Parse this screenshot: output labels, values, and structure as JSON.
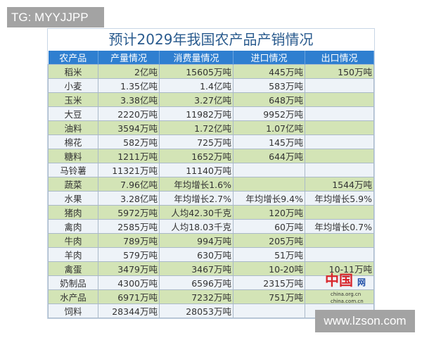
{
  "watermark_top": "TG: MYYJJPP",
  "watermark_bottom": "www.lzson.com",
  "logo": {
    "text": "中国",
    "suffix": "网",
    "url1": "china.org.cn",
    "url2": "china.com.cn"
  },
  "title": "预计2029年我国农产品产销情况",
  "colors": {
    "header": "#2f7fd0",
    "row_green": "#d3e4b6",
    "row_light": "#eef3f8",
    "title": "#2a5b8e"
  },
  "headers": [
    "农产品",
    "产量情况",
    "消费量情况",
    "进口情况",
    "出口情况"
  ],
  "rows": [
    [
      "稻米",
      "2亿吨",
      "15605万吨",
      "445万吨",
      "150万吨"
    ],
    [
      "小麦",
      "1.35亿吨",
      "1.4亿吨",
      "583万吨",
      ""
    ],
    [
      "玉米",
      "3.38亿吨",
      "3.27亿吨",
      "648万吨",
      ""
    ],
    [
      "大豆",
      "2220万吨",
      "11982万吨",
      "9952万吨",
      ""
    ],
    [
      "油料",
      "3594万吨",
      "1.72亿吨",
      "1.07亿吨",
      ""
    ],
    [
      "棉花",
      "582万吨",
      "725万吨",
      "145万吨",
      ""
    ],
    [
      "糖料",
      "1211万吨",
      "1652万吨",
      "644万吨",
      ""
    ],
    [
      "马铃薯",
      "11321万吨",
      "11140万吨",
      "",
      ""
    ],
    [
      "蔬菜",
      "7.96亿吨",
      "年均增长1.6%",
      "",
      "1544万吨"
    ],
    [
      "水果",
      "3.28亿吨",
      "年均增长2.7%",
      "年均增长9.4%",
      "年均增长5.9%"
    ],
    [
      "猪肉",
      "5972万吨",
      "人均42.30千克",
      "120万吨",
      ""
    ],
    [
      "禽肉",
      "2585万吨",
      "人均18.03千克",
      "60万吨",
      "年均增长0.7%"
    ],
    [
      "牛肉",
      "789万吨",
      "994万吨",
      "205万吨",
      ""
    ],
    [
      "羊肉",
      "579万吨",
      "630万吨",
      "51万吨",
      ""
    ],
    [
      "禽蛋",
      "3479万吨",
      "3467万吨",
      "10-20吨",
      "10-11万吨"
    ],
    [
      "奶制品",
      "4300万吨",
      "6596万吨",
      "2315万吨",
      ""
    ],
    [
      "水产品",
      "6971万吨",
      "7232万吨",
      "751万吨",
      ""
    ],
    [
      "饲料",
      "28344万吨",
      "28053万吨",
      "",
      ""
    ]
  ]
}
